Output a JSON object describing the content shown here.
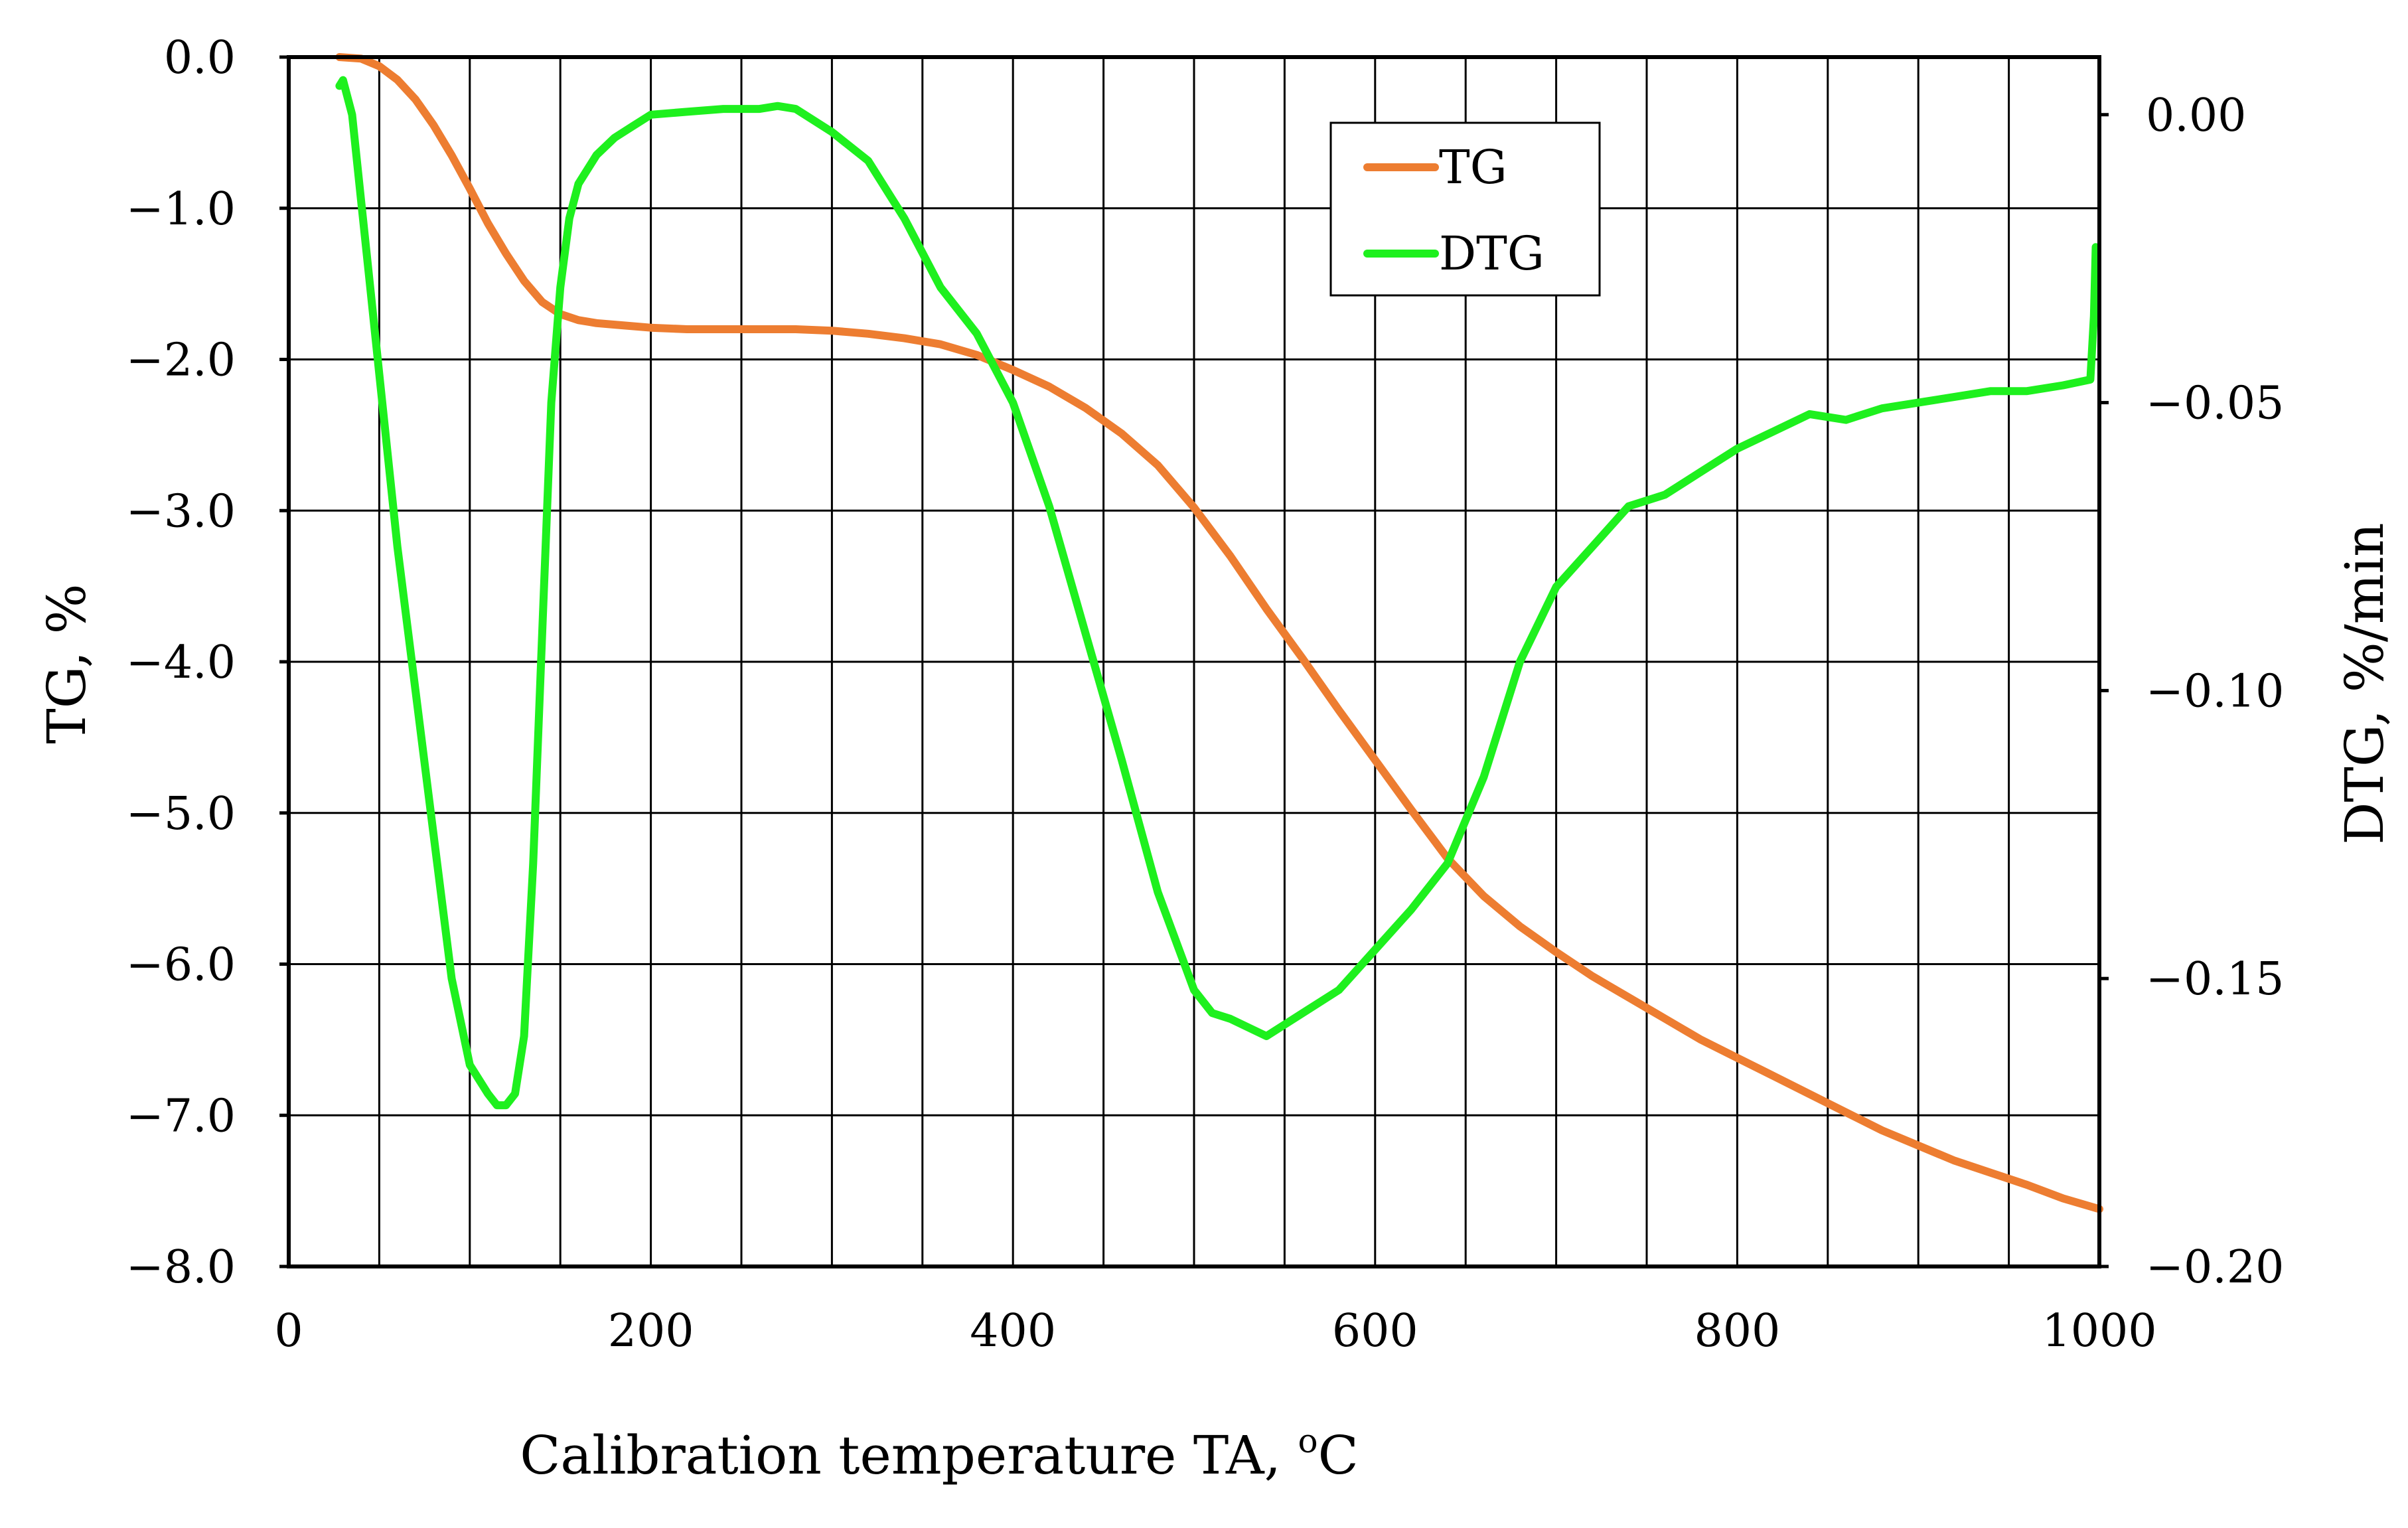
{
  "chart_data": {
    "type": "line",
    "title": "",
    "xlabel": "Calibration temperature TA, ",
    "xlabel_unit_sup": "o",
    "xlabel_unit": "C",
    "ylabel": "TG, %",
    "y2label": "DTG, %/min",
    "xlim": [
      0,
      1000
    ],
    "ylim": [
      -8.0,
      0.0
    ],
    "y2lim": [
      -0.2,
      0.01
    ],
    "x_ticks": [
      0,
      200,
      400,
      600,
      800,
      1000
    ],
    "x_tick_labels": [
      "0",
      "200",
      "400",
      "600",
      "800",
      "1000"
    ],
    "x_grid_step": 50,
    "y_ticks": [
      0,
      -1,
      -2,
      -3,
      -4,
      -5,
      -6,
      -7,
      -8
    ],
    "y_tick_labels": [
      "0.0",
      "−1.0",
      "−2.0",
      "−3.0",
      "−4.0",
      "−5.0",
      "−6.0",
      "−7.0",
      "−8.0"
    ],
    "y2_ticks": [
      0.0,
      -0.05,
      -0.1,
      -0.15,
      -0.2
    ],
    "y2_tick_labels": [
      "0.00",
      "−0.05",
      "−0.10",
      "−0.15",
      "−0.20"
    ],
    "grid": true,
    "legend": {
      "position": "top-right",
      "entries": [
        "TG",
        "DTG"
      ]
    },
    "series": [
      {
        "name": "TG",
        "axis": "left",
        "color": "#ED7D31",
        "x": [
          28,
          40,
          50,
          60,
          70,
          80,
          90,
          100,
          110,
          120,
          130,
          140,
          150,
          160,
          170,
          180,
          200,
          220,
          240,
          260,
          280,
          300,
          320,
          340,
          360,
          380,
          400,
          420,
          440,
          460,
          480,
          500,
          520,
          540,
          560,
          580,
          600,
          620,
          640,
          660,
          680,
          700,
          720,
          740,
          760,
          780,
          800,
          820,
          840,
          860,
          880,
          900,
          920,
          940,
          960,
          980,
          1000
        ],
        "values": [
          0.0,
          -0.01,
          -0.06,
          -0.15,
          -0.28,
          -0.45,
          -0.65,
          -0.87,
          -1.1,
          -1.3,
          -1.48,
          -1.62,
          -1.7,
          -1.74,
          -1.76,
          -1.77,
          -1.79,
          -1.8,
          -1.8,
          -1.8,
          -1.8,
          -1.81,
          -1.83,
          -1.86,
          -1.9,
          -1.97,
          -2.07,
          -2.18,
          -2.32,
          -2.49,
          -2.7,
          -2.98,
          -3.3,
          -3.65,
          -3.98,
          -4.32,
          -4.65,
          -4.98,
          -5.3,
          -5.55,
          -5.75,
          -5.92,
          -6.08,
          -6.22,
          -6.36,
          -6.5,
          -6.62,
          -6.74,
          -6.86,
          -6.98,
          -7.1,
          -7.2,
          -7.3,
          -7.38,
          -7.46,
          -7.55,
          -7.62
        ]
      },
      {
        "name": "DTG",
        "axis": "right",
        "color": "#1EF01E",
        "x": [
          28,
          30,
          35,
          40,
          45,
          50,
          60,
          70,
          80,
          90,
          100,
          110,
          115,
          120,
          125,
          130,
          135,
          140,
          145,
          150,
          155,
          160,
          170,
          180,
          190,
          200,
          220,
          240,
          260,
          270,
          280,
          290,
          300,
          320,
          340,
          360,
          380,
          400,
          420,
          440,
          460,
          480,
          500,
          510,
          520,
          540,
          560,
          580,
          600,
          620,
          640,
          660,
          680,
          700,
          720,
          740,
          760,
          780,
          800,
          820,
          840,
          860,
          880,
          900,
          920,
          940,
          960,
          980,
          995,
          997,
          998
        ],
        "values": [
          0.005,
          0.006,
          0.0,
          -0.015,
          -0.03,
          -0.045,
          -0.075,
          -0.1,
          -0.125,
          -0.15,
          -0.165,
          -0.17,
          -0.172,
          -0.172,
          -0.17,
          -0.16,
          -0.13,
          -0.09,
          -0.05,
          -0.03,
          -0.018,
          -0.012,
          -0.007,
          -0.004,
          -0.002,
          0.0,
          0.0005,
          0.001,
          0.001,
          0.0015,
          0.001,
          -0.001,
          -0.003,
          -0.008,
          -0.018,
          -0.03,
          -0.038,
          -0.05,
          -0.068,
          -0.09,
          -0.112,
          -0.135,
          -0.152,
          -0.156,
          -0.157,
          -0.16,
          -0.156,
          -0.152,
          -0.145,
          -0.138,
          -0.13,
          -0.115,
          -0.095,
          -0.082,
          -0.075,
          -0.068,
          -0.066,
          -0.062,
          -0.058,
          -0.055,
          -0.052,
          -0.053,
          -0.051,
          -0.05,
          -0.049,
          -0.048,
          -0.048,
          -0.047,
          -0.046,
          -0.035,
          -0.023
        ]
      }
    ]
  }
}
